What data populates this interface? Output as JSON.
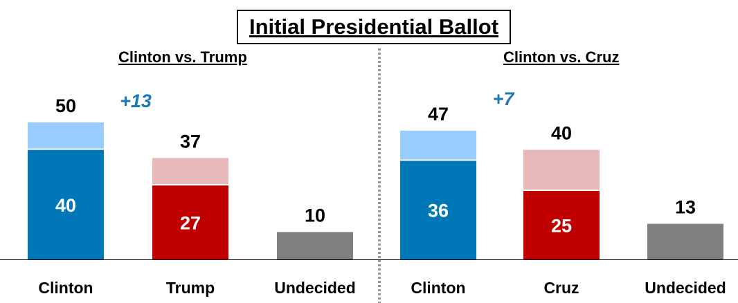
{
  "title": "Initial Presidential Ballot",
  "colors": {
    "clinton_total": "#99ccff",
    "clinton_strong": "#0077b6",
    "republican_total": "#e6b8b7",
    "republican_strong": "#c00000",
    "undecided": "#808080",
    "margin_text": "#1f77b4"
  },
  "chart_data": [
    {
      "type": "bar",
      "title": "Clinton vs. Trump",
      "categories": [
        "Clinton",
        "Trump",
        "Undecided"
      ],
      "series": [
        {
          "values": [
            50,
            37,
            10
          ]
        },
        {
          "values": [
            40,
            27,
            null
          ]
        }
      ],
      "margin_label": "+13",
      "ylim": [
        0,
        55
      ]
    },
    {
      "type": "bar",
      "title": "Clinton vs. Cruz",
      "categories": [
        "Clinton",
        "Cruz",
        "Undecided"
      ],
      "series": [
        {
          "values": [
            47,
            40,
            13
          ]
        },
        {
          "values": [
            36,
            25,
            null
          ]
        }
      ],
      "margin_label": "+7",
      "ylim": [
        0,
        55
      ]
    }
  ]
}
